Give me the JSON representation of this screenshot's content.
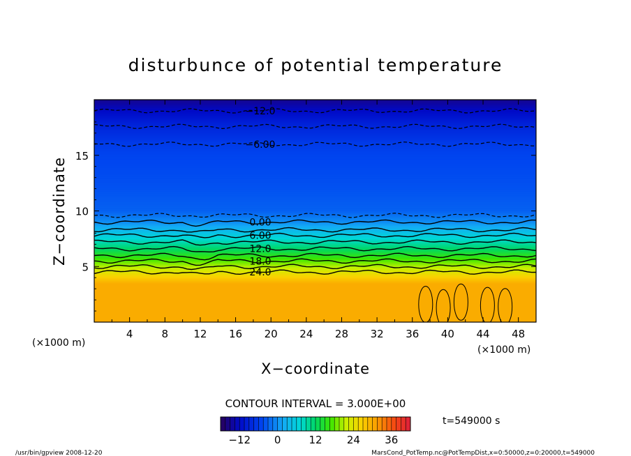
{
  "chart_data": {
    "type": "heatmap",
    "title": "disturbunce of potential temperature",
    "xlabel": "X−coordinate",
    "ylabel": "Z−coordinate",
    "x_unit": "(×1000 m)",
    "y_unit": "(×1000 m)",
    "xlim": [
      0,
      50
    ],
    "ylim": [
      0,
      20
    ],
    "x_ticks": [
      4,
      8,
      12,
      16,
      20,
      24,
      28,
      32,
      36,
      40,
      44,
      48
    ],
    "y_ticks": [
      5,
      10,
      15
    ],
    "contour_interval_text": "CONTOUR INTERVAL = 3.000E+00",
    "time_text": "t=549000 s",
    "vertical_profile": [
      {
        "z": 0.0,
        "value": 30
      },
      {
        "z": 3.5,
        "value": 30
      },
      {
        "z": 4.5,
        "value": 24
      },
      {
        "z": 5.5,
        "value": 18
      },
      {
        "z": 6.6,
        "value": 12
      },
      {
        "z": 7.8,
        "value": 6
      },
      {
        "z": 9.0,
        "value": 0
      },
      {
        "z": 10.0,
        "value": -3
      },
      {
        "z": 12.0,
        "value": -4
      },
      {
        "z": 15.0,
        "value": -5
      },
      {
        "z": 16.0,
        "value": -6
      },
      {
        "z": 17.8,
        "value": -9
      },
      {
        "z": 19.0,
        "value": -12
      },
      {
        "z": 20.0,
        "value": -15
      }
    ],
    "contour_lines": [
      {
        "value": -12,
        "label": "−12.0",
        "z": 19.0,
        "dashed": true,
        "labeled": true
      },
      {
        "value": -9,
        "label": "",
        "z": 17.6,
        "dashed": true,
        "labeled": false
      },
      {
        "value": -6,
        "label": "−6.00",
        "z": 16.0,
        "dashed": true,
        "labeled": true
      },
      {
        "value": -3,
        "label": "",
        "z": 9.6,
        "dashed": true,
        "labeled": false
      },
      {
        "value": 0,
        "label": "0.00",
        "z": 9.0,
        "dashed": false,
        "labeled": true
      },
      {
        "value": 3,
        "label": "",
        "z": 8.3,
        "dashed": false,
        "labeled": false
      },
      {
        "value": 6,
        "label": "6.00",
        "z": 7.8,
        "dashed": false,
        "labeled": true
      },
      {
        "value": 9,
        "label": "",
        "z": 7.2,
        "dashed": false,
        "labeled": false
      },
      {
        "value": 12,
        "label": "12.0",
        "z": 6.6,
        "dashed": false,
        "labeled": true
      },
      {
        "value": 15,
        "label": "",
        "z": 6.0,
        "dashed": false,
        "labeled": false
      },
      {
        "value": 18,
        "label": "18.0",
        "z": 5.5,
        "dashed": false,
        "labeled": true
      },
      {
        "value": 21,
        "label": "",
        "z": 5.0,
        "dashed": false,
        "labeled": false
      },
      {
        "value": 24,
        "label": "24.0",
        "z": 4.5,
        "dashed": false,
        "labeled": true
      }
    ],
    "colorbar": {
      "range": [
        -18,
        42
      ],
      "ticks": [
        -12,
        0,
        12,
        24,
        36
      ]
    }
  },
  "footer": {
    "left": "/usr/bin/gpview   2008-12-20",
    "right": "MarsCond_PotTemp.nc@PotTempDist,x=0:50000,z=0:20000,t=549000"
  },
  "colors": {
    "bottom_fill": "#f5a000",
    "mid_fill": "#1aa6f5",
    "top_fill": "#0028ef"
  }
}
